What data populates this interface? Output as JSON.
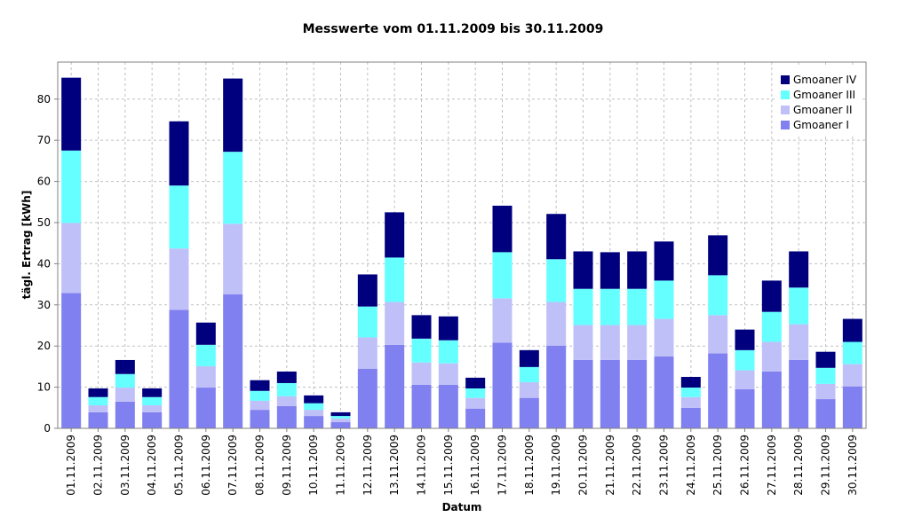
{
  "chart_data": {
    "type": "stacked_bar",
    "title": "Messwerte vom 01.11.2009 bis 30.11.2009",
    "x_label": "Datum",
    "y_label": "tägl. Ertrag [kWh]",
    "categories": [
      "01.11.2009",
      "02.11.2009",
      "03.11.2009",
      "04.11.2009",
      "05.11.2009",
      "06.11.2009",
      "07.11.2009",
      "08.11.2009",
      "09.11.2009",
      "10.11.2009",
      "11.11.2009",
      "12.11.2009",
      "13.11.2009",
      "14.11.2009",
      "15.11.2009",
      "16.11.2009",
      "17.11.2009",
      "18.11.2009",
      "19.11.2009",
      "20.11.2009",
      "21.11.2009",
      "22.11.2009",
      "23.11.2009",
      "24.11.2009",
      "25.11.2009",
      "26.11.2009",
      "27.11.2009",
      "28.11.2009",
      "29.11.2009",
      "30.11.2009"
    ],
    "series": [
      {
        "name": "Gmoaner I",
        "color": "#8080f0",
        "values": [
          32.9,
          3.9,
          6.5,
          3.9,
          28.8,
          9.9,
          32.6,
          4.5,
          5.4,
          3.0,
          1.5,
          14.5,
          20.3,
          10.6,
          10.6,
          4.8,
          20.8,
          7.4,
          20.1,
          16.6,
          16.6,
          16.6,
          17.5,
          5.0,
          18.2,
          9.5,
          13.8,
          16.6,
          7.1,
          10.2
        ]
      },
      {
        "name": "Gmoaner II",
        "color": "#c0c0f8",
        "values": [
          17.0,
          1.7,
          3.4,
          1.7,
          14.9,
          5.2,
          17.1,
          2.2,
          2.4,
          1.5,
          0.9,
          7.6,
          10.4,
          5.4,
          5.2,
          2.6,
          10.8,
          3.8,
          10.6,
          8.5,
          8.5,
          8.5,
          9.1,
          2.6,
          9.3,
          4.6,
          7.2,
          8.7,
          3.7,
          5.4
        ]
      },
      {
        "name": "Gmoaner III",
        "color": "#66ffff",
        "values": [
          17.6,
          2.0,
          3.3,
          2.0,
          15.3,
          5.2,
          17.5,
          2.4,
          3.2,
          1.6,
          0.6,
          7.5,
          10.8,
          5.8,
          5.6,
          2.3,
          11.2,
          3.7,
          10.4,
          8.8,
          8.8,
          8.8,
          9.3,
          2.3,
          9.7,
          4.9,
          7.3,
          8.9,
          3.9,
          5.4
        ]
      },
      {
        "name": "Gmoaner IV",
        "color": "#00007f",
        "values": [
          17.7,
          2.1,
          3.4,
          2.1,
          15.6,
          5.4,
          17.8,
          2.6,
          2.8,
          1.9,
          0.9,
          7.8,
          11.0,
          5.7,
          5.8,
          2.6,
          11.3,
          4.1,
          11.0,
          9.1,
          8.9,
          9.1,
          9.5,
          2.6,
          9.7,
          5.0,
          7.6,
          8.8,
          3.9,
          5.6
        ]
      }
    ],
    "ylim": [
      0,
      89
    ],
    "yticks": [
      0,
      10,
      20,
      30,
      40,
      50,
      60,
      70,
      80
    ],
    "grid": true,
    "legend": "top-right"
  }
}
